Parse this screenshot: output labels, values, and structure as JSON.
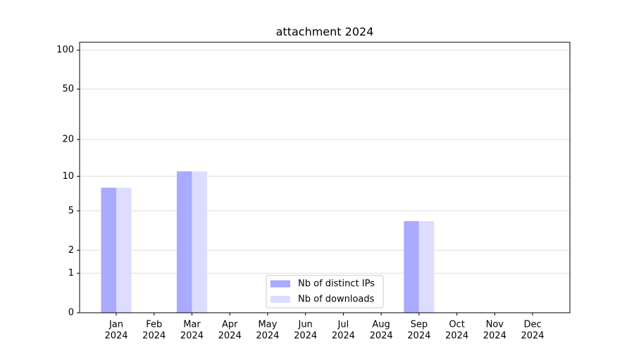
{
  "chart_data": {
    "type": "bar",
    "title": "attachment 2024",
    "categories": [
      [
        "Jan",
        "2024"
      ],
      [
        "Feb",
        "2024"
      ],
      [
        "Mar",
        "2024"
      ],
      [
        "Apr",
        "2024"
      ],
      [
        "May",
        "2024"
      ],
      [
        "Jun",
        "2024"
      ],
      [
        "Jul",
        "2024"
      ],
      [
        "Aug",
        "2024"
      ],
      [
        "Sep",
        "2024"
      ],
      [
        "Oct",
        "2024"
      ],
      [
        "Nov",
        "2024"
      ],
      [
        "Dec",
        "2024"
      ]
    ],
    "series": [
      {
        "name": "Nb of distinct IPs",
        "color": "#aaaaff",
        "values": [
          8,
          0,
          11,
          0,
          0,
          0,
          0,
          0,
          4,
          0,
          0,
          0
        ]
      },
      {
        "name": "Nb of downloads",
        "color": "#ddddff",
        "values": [
          8,
          0,
          11,
          0,
          0,
          0,
          0,
          0,
          4,
          0,
          0,
          0
        ]
      }
    ],
    "yscale": "log1p",
    "ylim": [
      0,
      115
    ],
    "yticks": [
      0,
      1,
      2,
      5,
      10,
      20,
      50,
      100
    ],
    "grid": true,
    "legend": "lower center"
  }
}
